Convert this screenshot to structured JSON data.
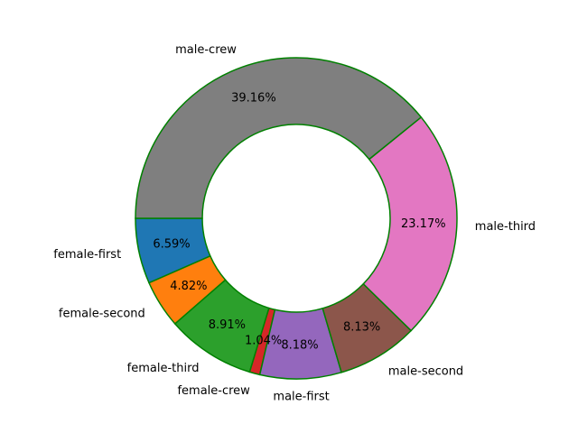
{
  "chart_data": {
    "type": "pie",
    "donut": true,
    "start_angle_deg": 180,
    "direction": "counterclockwise",
    "categories": [
      "female-first",
      "female-second",
      "female-third",
      "female-crew",
      "male-first",
      "male-second",
      "male-third",
      "male-crew"
    ],
    "values": [
      6.59,
      4.82,
      8.91,
      1.04,
      8.18,
      8.13,
      23.17,
      39.16
    ],
    "value_labels": [
      "6.59%",
      "4.82%",
      "8.91%",
      "1.04%",
      "8.18%",
      "8.13%",
      "23.17%",
      "39.16%"
    ],
    "colors": [
      "#1f77b4",
      "#ff7f0e",
      "#2ca02c",
      "#d62728",
      "#9467bd",
      "#8c564b",
      "#e377c2",
      "#7f7f7f"
    ],
    "edge_color": "#008000",
    "legend": "none",
    "grid": false
  }
}
